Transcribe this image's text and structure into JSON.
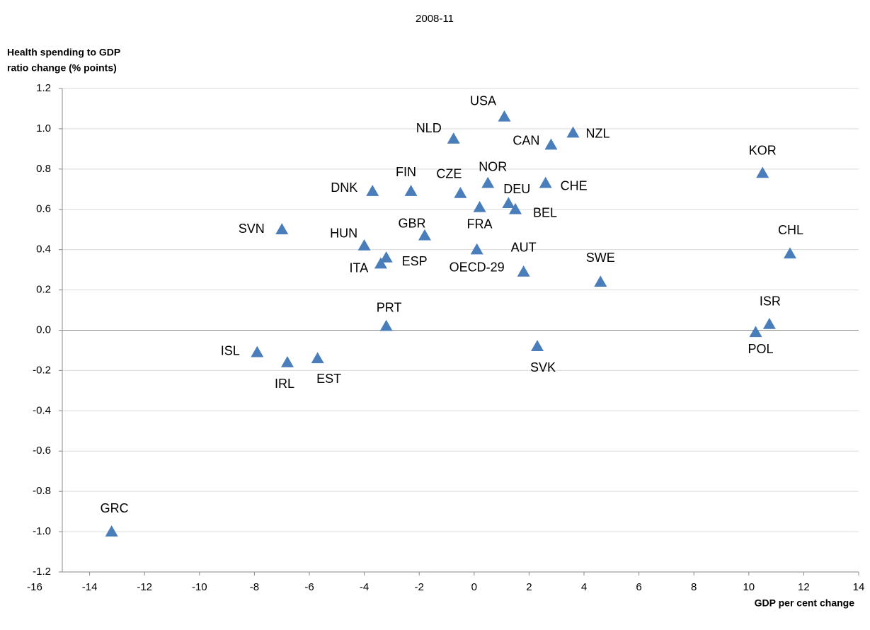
{
  "chart_data": {
    "type": "scatter",
    "title": "2008-11",
    "y_label": [
      "Health spending to GDP",
      "ratio change  (% points)"
    ],
    "x_label": "GDP per cent change",
    "color": "#4a7ebb",
    "labels": [
      "USA",
      "NLD",
      "CAN",
      "NZL",
      "KOR",
      "DNK",
      "FIN",
      "CZE",
      "NOR",
      "CHE",
      "DEU",
      "BEL",
      "FRA",
      "SVN",
      "GBR",
      "HUN",
      "ESP",
      "ITA",
      "OECD-29",
      "AUT",
      "CHL",
      "SWE",
      "ISR",
      "POL",
      "PRT",
      "SVK",
      "ISL",
      "IRL",
      "EST",
      "GRC"
    ],
    "x": [
      1.1,
      -0.75,
      2.8,
      3.6,
      10.5,
      -3.7,
      -2.3,
      -0.5,
      0.5,
      2.6,
      1.25,
      1.5,
      0.2,
      -7.0,
      -1.8,
      -4.0,
      -3.2,
      -3.4,
      0.1,
      1.8,
      11.5,
      4.6,
      10.75,
      10.25,
      -3.2,
      2.3,
      -7.9,
      -6.8,
      -5.7,
      -13.2
    ],
    "values": [
      1.06,
      0.95,
      0.92,
      0.98,
      0.78,
      0.69,
      0.69,
      0.68,
      0.73,
      0.73,
      0.63,
      0.6,
      0.61,
      0.5,
      0.47,
      0.42,
      0.36,
      0.33,
      0.4,
      0.29,
      0.38,
      0.24,
      0.03,
      -0.01,
      0.02,
      -0.08,
      -0.11,
      -0.16,
      -0.14,
      -1.0
    ],
    "xlim": [
      -16,
      14
    ],
    "xticks": [
      -16,
      -14,
      -12,
      -10,
      -8,
      -6,
      -4,
      -2,
      0,
      2,
      4,
      6,
      8,
      10,
      12,
      14
    ],
    "ylim": [
      -1.2,
      1.2
    ],
    "yticks": [
      -1.2,
      {
        "value": -1,
        "label": "-1.0"
      },
      -0.8,
      -0.6,
      -0.4,
      -0.2,
      {
        "value": 0,
        "label": "0.0"
      },
      0.2,
      0.4,
      0.6,
      0.8,
      {
        "value": 1,
        "label": "1.0"
      },
      1.2
    ],
    "grid": true
  }
}
